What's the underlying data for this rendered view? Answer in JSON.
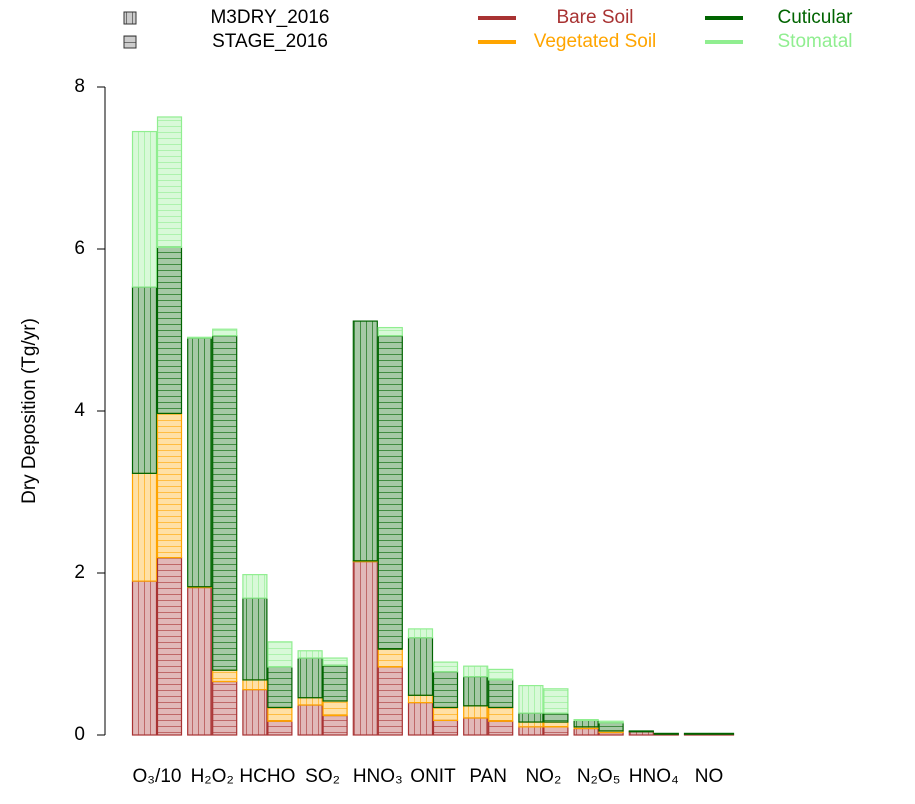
{
  "chart_data": {
    "type": "grouped-stacked-bar",
    "y_label": "Dry Deposition (Tg/yr)",
    "categories": [
      "O₃/10",
      "H₂O₂",
      "HCHO",
      "SO₂",
      "HNO₃",
      "ONIT",
      "PAN",
      "NO₂",
      "N₂O₅",
      "HNO₄",
      "NO"
    ],
    "components": [
      {
        "name": "Bare Soil",
        "color": "#a83232"
      },
      {
        "name": "Vegetated Soil",
        "color": "#ffa500"
      },
      {
        "name": "Cuticular",
        "color": "#006400"
      },
      {
        "name": "Stomatal",
        "color": "#90ee90"
      }
    ],
    "models": [
      {
        "name": "M3DRY_2016",
        "hatch_angle": 45,
        "values": [
          [
            1.9,
            1.82,
            0.56,
            0.37,
            2.14,
            0.4,
            0.21,
            0.1,
            0.08,
            0.04,
            0.01
          ],
          [
            1.33,
            0.01,
            0.12,
            0.09,
            0.01,
            0.09,
            0.15,
            0.06,
            0.02,
            0,
            0
          ],
          [
            2.3,
            3.07,
            1.01,
            0.49,
            2.96,
            0.71,
            0.36,
            0.11,
            0.08,
            0.01,
            0.01
          ],
          [
            1.92,
            0.01,
            0.29,
            0.09,
            0,
            0.11,
            0.13,
            0.34,
            0.01,
            0,
            0
          ]
        ]
      },
      {
        "name": "STAGE_2016",
        "hatch_angle": 135,
        "values": [
          [
            2.19,
            0.66,
            0.17,
            0.24,
            0.84,
            0.18,
            0.17,
            0.1,
            0.03,
            0.01,
            0.01
          ],
          [
            1.78,
            0.14,
            0.17,
            0.18,
            0.22,
            0.16,
            0.17,
            0.06,
            0.02,
            0,
            0
          ],
          [
            2.05,
            4.13,
            0.5,
            0.44,
            3.87,
            0.44,
            0.34,
            0.11,
            0.1,
            0.01,
            0.01
          ],
          [
            1.61,
            0.08,
            0.31,
            0.09,
            0.1,
            0.12,
            0.13,
            0.3,
            0.02,
            0,
            0
          ]
        ]
      }
    ],
    "ylim": [
      0,
      8
    ],
    "yticks": [
      0,
      2,
      4,
      6,
      8
    ]
  }
}
